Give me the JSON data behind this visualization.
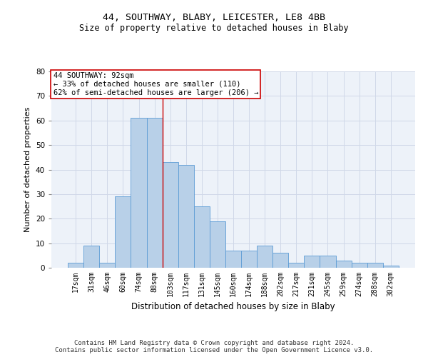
{
  "title1": "44, SOUTHWAY, BLABY, LEICESTER, LE8 4BB",
  "title2": "Size of property relative to detached houses in Blaby",
  "xlabel": "Distribution of detached houses by size in Blaby",
  "ylabel": "Number of detached properties",
  "bar_labels": [
    "17sqm",
    "31sqm",
    "46sqm",
    "60sqm",
    "74sqm",
    "88sqm",
    "103sqm",
    "117sqm",
    "131sqm",
    "145sqm",
    "160sqm",
    "174sqm",
    "188sqm",
    "202sqm",
    "217sqm",
    "231sqm",
    "245sqm",
    "259sqm",
    "274sqm",
    "288sqm",
    "302sqm"
  ],
  "bar_heights": [
    2,
    9,
    2,
    29,
    61,
    61,
    43,
    42,
    25,
    19,
    7,
    7,
    9,
    6,
    2,
    5,
    5,
    3,
    2,
    2,
    1
  ],
  "bar_color": "#b8d0e8",
  "bar_edge_color": "#5b9bd5",
  "bar_edge_width": 0.6,
  "red_line_x": 5.5,
  "red_line_color": "#cc0000",
  "annotation_text": "44 SOUTHWAY: 92sqm\n← 33% of detached houses are smaller (110)\n62% of semi-detached houses are larger (206) →",
  "annotation_box_color": "#ffffff",
  "annotation_box_edge_color": "#cc0000",
  "annotation_fontsize": 7.5,
  "ylim": [
    0,
    80
  ],
  "yticks": [
    0,
    10,
    20,
    30,
    40,
    50,
    60,
    70,
    80
  ],
  "grid_color": "#d0d8e8",
  "background_color": "#edf2f9",
  "footer_text": "Contains HM Land Registry data © Crown copyright and database right 2024.\nContains public sector information licensed under the Open Government Licence v3.0.",
  "title1_fontsize": 9.5,
  "title2_fontsize": 8.5,
  "xlabel_fontsize": 8.5,
  "ylabel_fontsize": 8,
  "tick_fontsize": 7,
  "ytick_fontsize": 7.5,
  "footer_fontsize": 6.5
}
